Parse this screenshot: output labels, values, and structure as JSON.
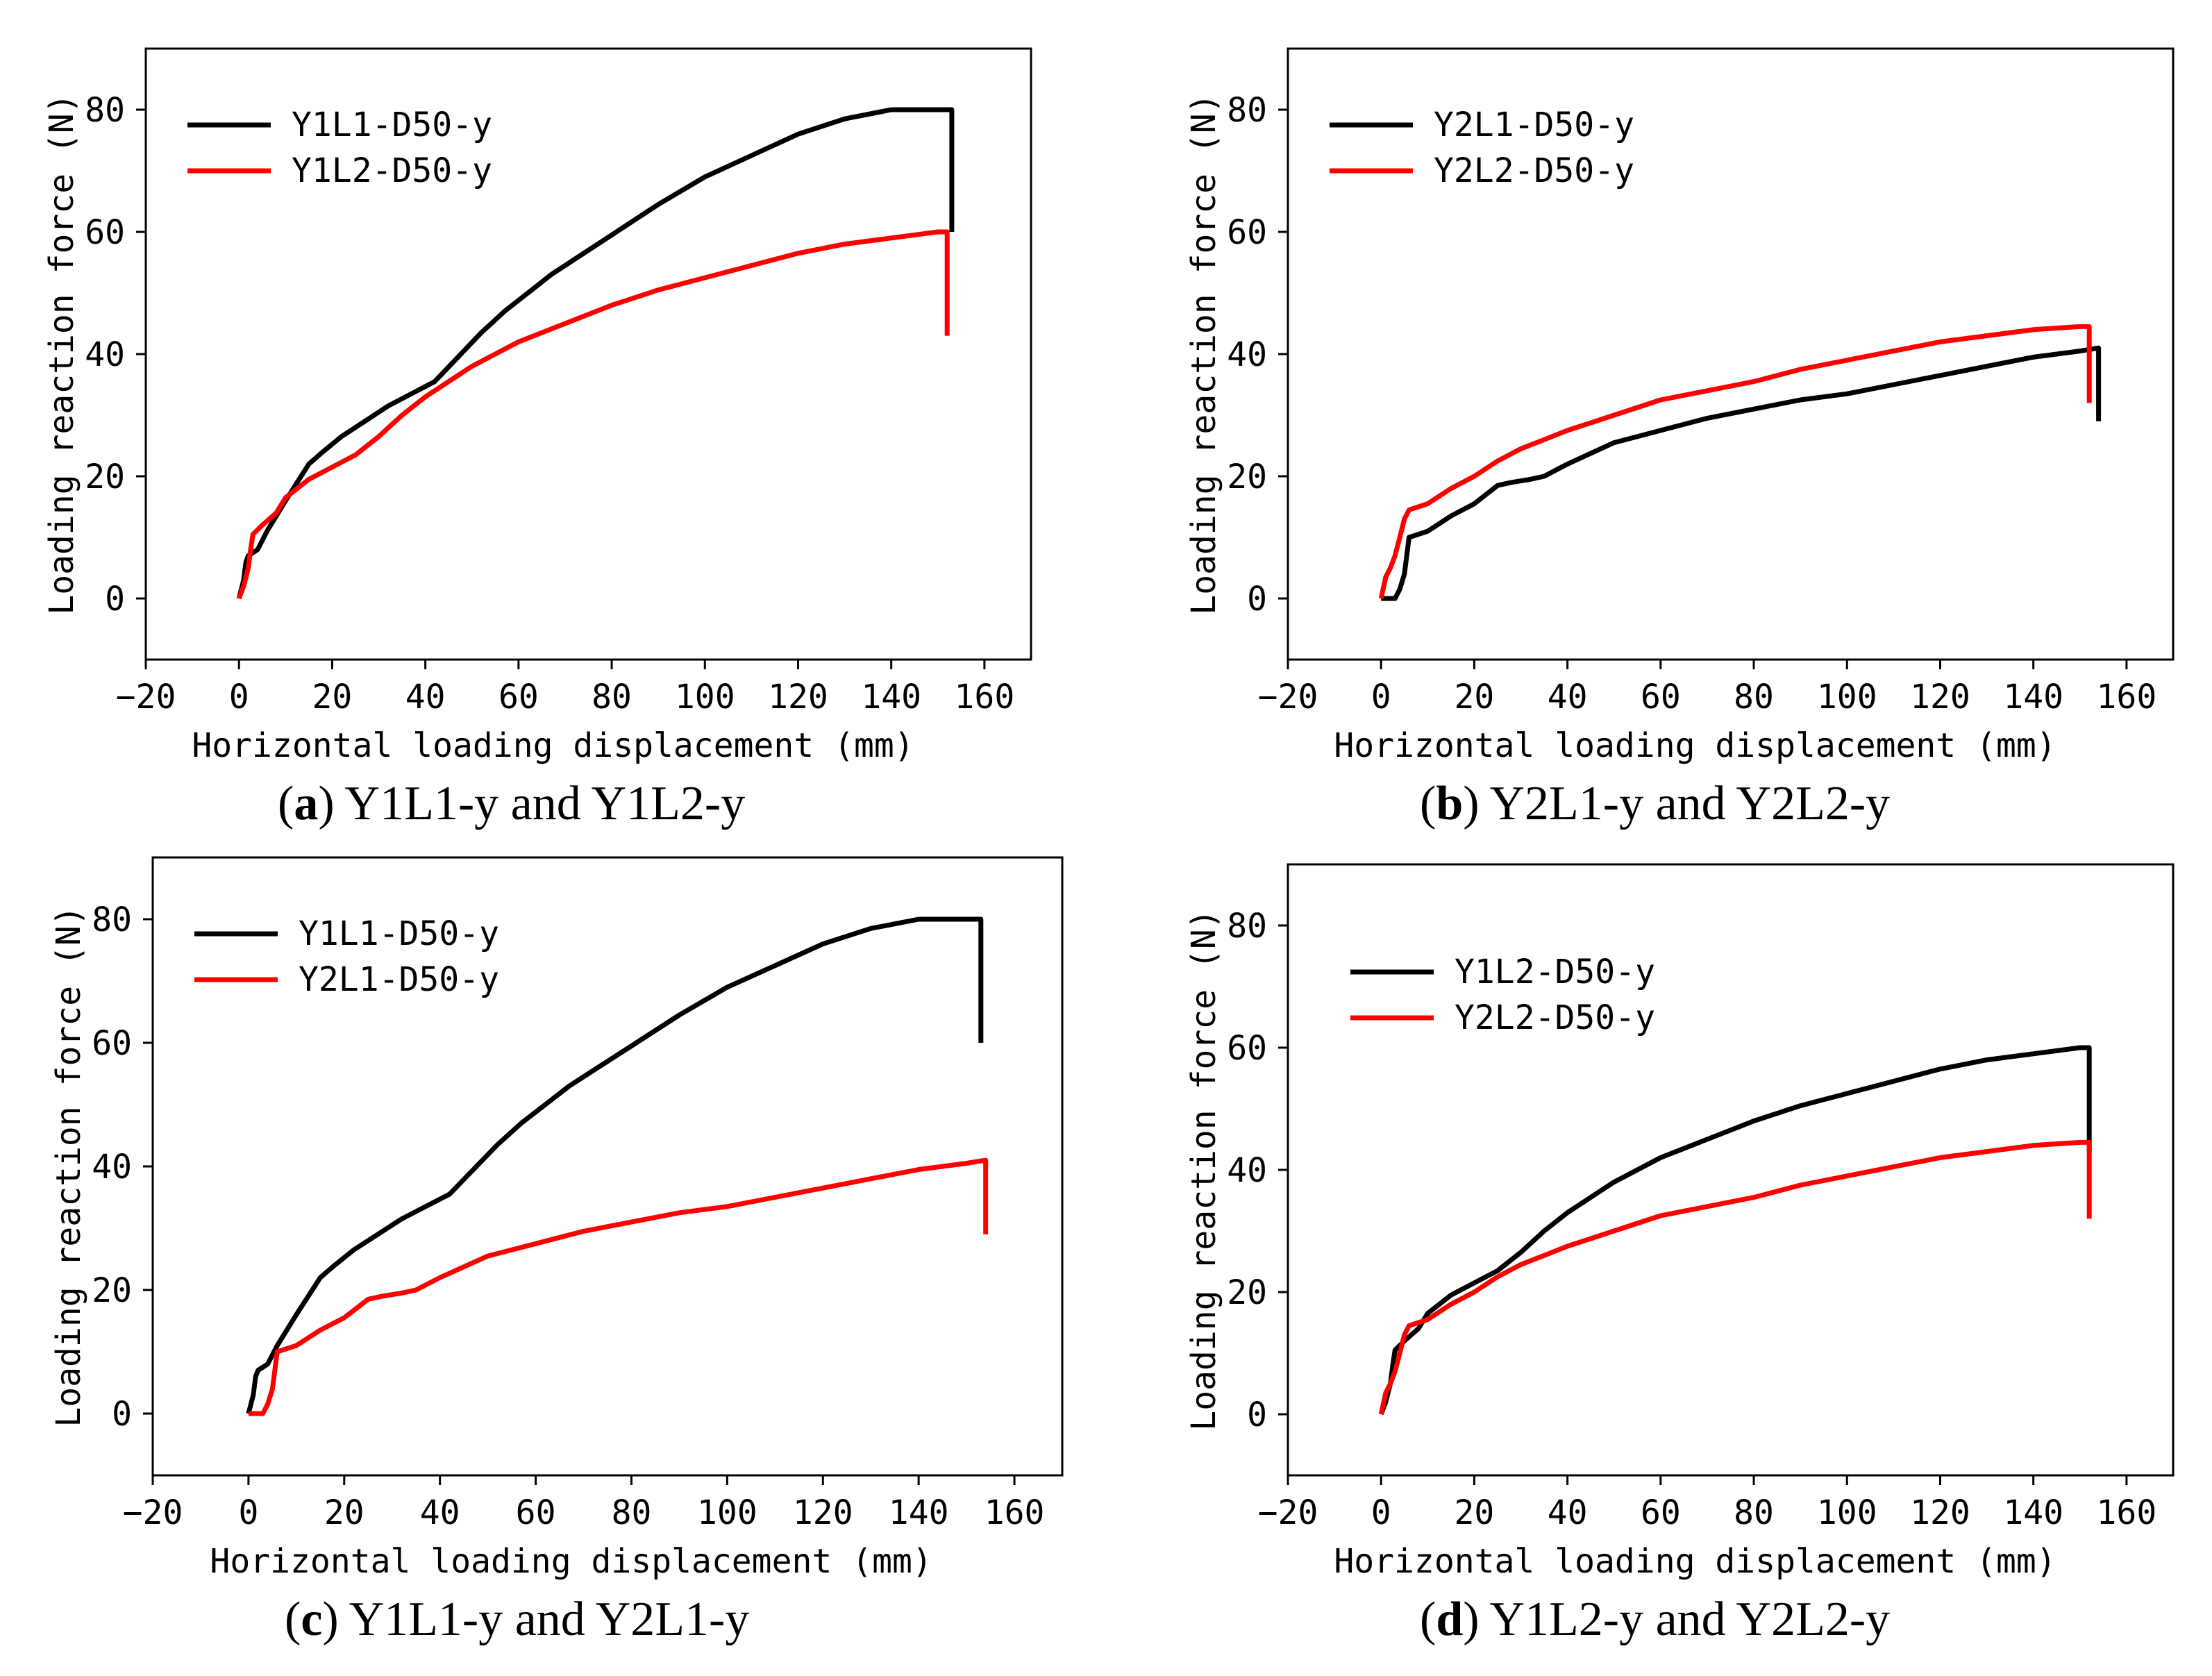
{
  "chart_data": [
    {
      "type": "line",
      "caption": {
        "open": "(",
        "letter": "a",
        "close": ")",
        "text": " Y1L1-y and Y1L2-y"
      },
      "xlabel": "Horizontal loading displacement (mm)",
      "ylabel": "Loading reaction force (N)",
      "xlim": [
        -20,
        170
      ],
      "ylim": [
        -10,
        90
      ],
      "xticks": [
        -20,
        0,
        20,
        40,
        60,
        80,
        100,
        120,
        140,
        160
      ],
      "yticks": [
        0,
        20,
        40,
        60,
        80
      ],
      "legend_position": "top-left",
      "series": [
        {
          "name": "Y1L1-D50-y",
          "color": "#000000",
          "x": [
            0,
            1,
            1.5,
            2,
            4,
            6,
            10,
            15,
            18,
            22,
            27,
            32,
            37,
            42,
            47,
            52,
            57,
            62,
            67,
            72,
            80,
            90,
            100,
            110,
            120,
            130,
            140,
            150,
            153,
            153
          ],
          "y": [
            0,
            3,
            6,
            7,
            8,
            11,
            16,
            22,
            24,
            26.5,
            29,
            31.5,
            33.5,
            35.5,
            39.5,
            43.5,
            47,
            50,
            53,
            55.5,
            59.5,
            64.5,
            69,
            72.5,
            76,
            78.5,
            80,
            80,
            80,
            60
          ]
        },
        {
          "name": "Y1L2-D50-y",
          "color": "#ff0000",
          "x": [
            0,
            1,
            2,
            2.5,
            3,
            5,
            8,
            10,
            15,
            20,
            25,
            30,
            35,
            40,
            50,
            60,
            70,
            80,
            90,
            100,
            110,
            120,
            130,
            140,
            150,
            152,
            152
          ],
          "y": [
            0,
            2,
            5,
            8,
            10.5,
            12,
            14,
            16.5,
            19.5,
            21.5,
            23.5,
            26.5,
            30,
            33,
            38,
            42,
            45,
            48,
            50.5,
            52.5,
            54.5,
            56.5,
            58,
            59,
            60,
            60,
            43
          ]
        }
      ]
    },
    {
      "type": "line",
      "caption": {
        "open": "(",
        "letter": "b",
        "close": ")",
        "text": " Y2L1-y and Y2L2-y"
      },
      "xlabel": "Horizontal loading displacement (mm)",
      "ylabel": "Loading reaction force (N)",
      "xlim": [
        -20,
        170
      ],
      "ylim": [
        -10,
        90
      ],
      "xticks": [
        -20,
        0,
        20,
        40,
        60,
        80,
        100,
        120,
        140,
        160
      ],
      "yticks": [
        0,
        20,
        40,
        60,
        80
      ],
      "legend_position": "top-left",
      "series": [
        {
          "name": "Y2L1-D50-y",
          "color": "#000000",
          "x": [
            0,
            2,
            3,
            4,
            5,
            6,
            10,
            15,
            20,
            25,
            28,
            32,
            35,
            40,
            50,
            60,
            70,
            80,
            90,
            100,
            110,
            120,
            130,
            140,
            150,
            154,
            154
          ],
          "y": [
            0,
            0,
            0,
            1.5,
            4,
            10,
            11,
            13.5,
            15.5,
            18.5,
            19,
            19.5,
            20,
            22,
            25.5,
            27.5,
            29.5,
            31,
            32.5,
            33.5,
            35,
            36.5,
            38,
            39.5,
            40.5,
            41,
            29
          ]
        },
        {
          "name": "Y2L2-D50-y",
          "color": "#ff0000",
          "x": [
            0,
            1,
            2,
            3,
            4,
            5,
            6,
            10,
            15,
            20,
            25,
            30,
            35,
            40,
            50,
            60,
            70,
            80,
            90,
            100,
            110,
            120,
            130,
            140,
            150,
            152,
            152
          ],
          "y": [
            0,
            3.5,
            5,
            7,
            10,
            13,
            14.5,
            15.5,
            18,
            20,
            22.5,
            24.5,
            26,
            27.5,
            30,
            32.5,
            34,
            35.5,
            37.5,
            39,
            40.5,
            42,
            43,
            44,
            44.5,
            44.5,
            32
          ]
        }
      ]
    },
    {
      "type": "line",
      "caption": {
        "open": "(",
        "letter": "c",
        "close": ")",
        "text": " Y1L1-y and Y2L1-y"
      },
      "xlabel": "Horizontal loading displacement (mm)",
      "ylabel": "Loading reaction force (N)",
      "xlim": [
        -20,
        170
      ],
      "ylim": [
        -10,
        90
      ],
      "xticks": [
        -20,
        0,
        20,
        40,
        60,
        80,
        100,
        120,
        140,
        160
      ],
      "yticks": [
        0,
        20,
        40,
        60,
        80
      ],
      "legend_position": "top-left",
      "series": [
        {
          "name": "Y1L1-D50-y",
          "color": "#000000",
          "x": [
            0,
            1,
            1.5,
            2,
            4,
            6,
            10,
            15,
            18,
            22,
            27,
            32,
            37,
            42,
            47,
            52,
            57,
            62,
            67,
            72,
            80,
            90,
            100,
            110,
            120,
            130,
            140,
            150,
            153,
            153
          ],
          "y": [
            0,
            3,
            6,
            7,
            8,
            11,
            16,
            22,
            24,
            26.5,
            29,
            31.5,
            33.5,
            35.5,
            39.5,
            43.5,
            47,
            50,
            53,
            55.5,
            59.5,
            64.5,
            69,
            72.5,
            76,
            78.5,
            80,
            80,
            80,
            60
          ]
        },
        {
          "name": "Y2L1-D50-y",
          "color": "#ff0000",
          "x": [
            0,
            2,
            3,
            4,
            5,
            6,
            10,
            15,
            20,
            25,
            28,
            32,
            35,
            40,
            50,
            60,
            70,
            80,
            90,
            100,
            110,
            120,
            130,
            140,
            150,
            154,
            154
          ],
          "y": [
            0,
            0,
            0,
            1.5,
            4,
            10,
            11,
            13.5,
            15.5,
            18.5,
            19,
            19.5,
            20,
            22,
            25.5,
            27.5,
            29.5,
            31,
            32.5,
            33.5,
            35,
            36.5,
            38,
            39.5,
            40.5,
            41,
            29
          ]
        }
      ]
    },
    {
      "type": "line",
      "caption": {
        "open": "(",
        "letter": "d",
        "close": ")",
        "text": " Y1L2-y and Y2L2-y"
      },
      "xlabel": "Horizontal loading displacement (mm)",
      "ylabel": "Loading reaction force (N)",
      "xlim": [
        -20,
        170
      ],
      "ylim": [
        -10,
        90
      ],
      "xticks": [
        -20,
        0,
        20,
        40,
        60,
        80,
        100,
        120,
        140,
        160
      ],
      "yticks": [
        0,
        20,
        40,
        60,
        80
      ],
      "legend_position": "top-left",
      "series": [
        {
          "name": "Y1L2-D50-y",
          "color": "#000000",
          "x": [
            0,
            1,
            2,
            2.5,
            3,
            5,
            8,
            10,
            15,
            20,
            25,
            30,
            35,
            40,
            50,
            60,
            70,
            80,
            90,
            100,
            110,
            120,
            130,
            140,
            150,
            152,
            152
          ],
          "y": [
            0,
            2,
            5,
            8,
            10.5,
            12,
            14,
            16.5,
            19.5,
            21.5,
            23.5,
            26.5,
            30,
            33,
            38,
            42,
            45,
            48,
            50.5,
            52.5,
            54.5,
            56.5,
            58,
            59,
            60,
            60,
            43
          ]
        },
        {
          "name": "Y2L2-D50-y",
          "color": "#ff0000",
          "x": [
            0,
            1,
            2,
            3,
            4,
            5,
            6,
            10,
            15,
            20,
            25,
            30,
            35,
            40,
            50,
            60,
            70,
            80,
            90,
            100,
            110,
            120,
            130,
            140,
            150,
            152,
            152
          ],
          "y": [
            0,
            3.5,
            5,
            7,
            10,
            13,
            14.5,
            15.5,
            18,
            20,
            22.5,
            24.5,
            26,
            27.5,
            30,
            32.5,
            34,
            35.5,
            37.5,
            39,
            40.5,
            42,
            43,
            44,
            44.5,
            44.5,
            32
          ]
        }
      ]
    }
  ]
}
